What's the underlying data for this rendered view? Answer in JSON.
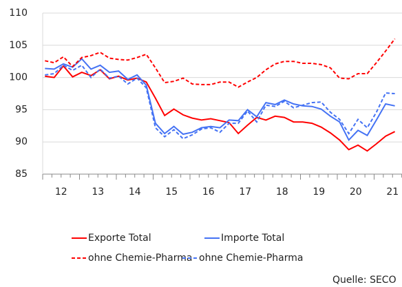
{
  "chart_data": {
    "type": "line",
    "x_labels": [
      "12",
      "13",
      "14",
      "15",
      "16",
      "17",
      "18",
      "19",
      "20",
      "21"
    ],
    "ylim": [
      85,
      110
    ],
    "yticks": [
      85,
      90,
      95,
      100,
      105,
      110
    ],
    "grid": true,
    "series": [
      {
        "name": "Exporte Total",
        "color": "#ff0000",
        "dashed": false,
        "values": [
          100.2,
          100.0,
          101.8,
          100.1,
          100.8,
          100.3,
          101.2,
          99.8,
          100.2,
          99.6,
          99.9,
          99.3,
          96.8,
          94.1,
          95.1,
          94.2,
          93.7,
          93.4,
          93.6,
          93.3,
          93.0,
          91.3,
          92.6,
          93.8,
          93.4,
          94.0,
          93.8,
          93.1,
          93.1,
          92.9,
          92.3,
          91.4,
          90.3,
          88.8,
          89.5,
          88.6,
          89.7,
          90.9,
          91.6
        ]
      },
      {
        "name": "Importe Total",
        "color": "#4472f4",
        "dashed": false,
        "values": [
          101.4,
          101.3,
          102.1,
          101.6,
          102.9,
          101.3,
          101.9,
          100.8,
          101.0,
          99.7,
          100.4,
          98.8,
          92.9,
          91.3,
          92.4,
          91.2,
          91.5,
          92.2,
          92.4,
          92.2,
          93.4,
          93.3,
          95.0,
          93.9,
          96.1,
          95.8,
          96.5,
          95.9,
          95.6,
          95.5,
          95.1,
          94.0,
          93.1,
          90.3,
          91.8,
          91.0,
          93.4,
          95.9,
          95.6
        ]
      },
      {
        "name": "ohne Chemie-Pharma",
        "color": "#ff0000",
        "dashed": true,
        "values": [
          102.6,
          102.3,
          103.2,
          101.7,
          103.1,
          103.4,
          103.9,
          103.0,
          102.8,
          102.7,
          103.1,
          103.6,
          101.5,
          99.2,
          99.4,
          99.9,
          99.0,
          98.9,
          98.9,
          99.3,
          99.3,
          98.5,
          99.3,
          100.0,
          101.2,
          102.1,
          102.5,
          102.5,
          102.2,
          102.2,
          102.0,
          101.5,
          99.9,
          99.8,
          100.6,
          100.6,
          102.3,
          104.1,
          106.0
        ]
      },
      {
        "name": "ohne Chemie-Pharma",
        "color": "#4472f4",
        "dashed": true,
        "values": [
          100.4,
          100.6,
          101.9,
          101.1,
          101.9,
          100.0,
          101.3,
          99.9,
          100.2,
          99.0,
          99.9,
          98.4,
          92.2,
          90.8,
          91.9,
          90.5,
          91.1,
          92.0,
          92.2,
          91.5,
          92.9,
          92.9,
          94.8,
          93.1,
          95.7,
          95.5,
          96.3,
          95.3,
          95.7,
          96.1,
          96.2,
          94.6,
          93.5,
          91.3,
          93.5,
          92.2,
          94.6,
          97.6,
          97.5
        ]
      }
    ],
    "source": "Quelle: SECO"
  }
}
